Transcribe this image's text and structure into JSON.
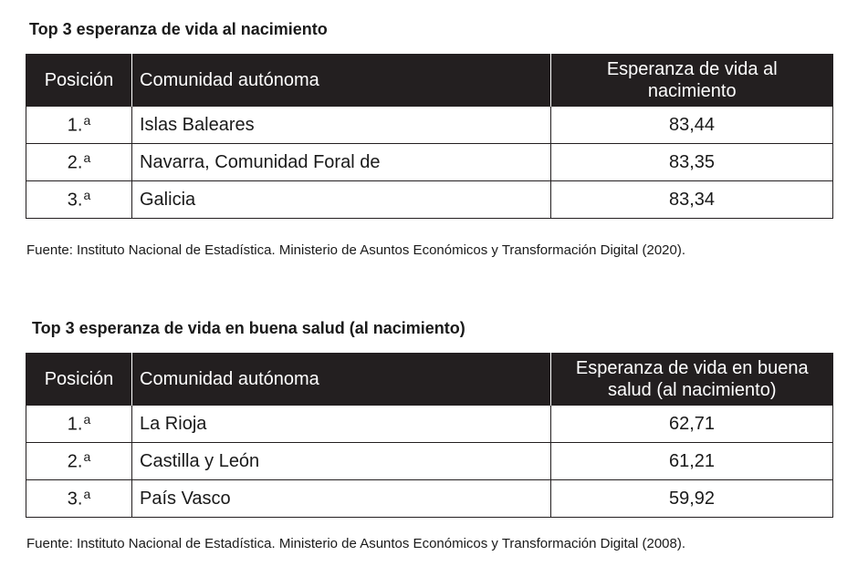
{
  "table1": {
    "title": "Top 3 esperanza de vida al nacimiento",
    "headers": {
      "position": "Posición",
      "region": "Comunidad autónoma",
      "value_line1": "Esperanza de vida al",
      "value_line2": "nacimiento"
    },
    "rows": [
      {
        "rank": "1.",
        "ord": "a",
        "region": "Islas Baleares",
        "value": "83,44"
      },
      {
        "rank": "2.",
        "ord": "a",
        "region": "Navarra, Comunidad Foral de",
        "value": "83,35"
      },
      {
        "rank": "3.",
        "ord": "a",
        "region": "Galicia",
        "value": "83,34"
      }
    ],
    "source": "Fuente: Instituto Nacional de Estadística. Ministerio de Asuntos Económicos y Transformación Digital (2020)."
  },
  "table2": {
    "title": "Top 3 esperanza de vida en buena salud (al nacimiento)",
    "headers": {
      "position": "Posición",
      "region": "Comunidad autónoma",
      "value_line1": "Esperanza de vida en buena",
      "value_line2": "salud (al nacimiento)"
    },
    "rows": [
      {
        "rank": "1.",
        "ord": "a",
        "region": "La Rioja",
        "value": "62,71"
      },
      {
        "rank": "2.",
        "ord": "a",
        "region": "Castilla y León",
        "value": "61,21"
      },
      {
        "rank": "3.",
        "ord": "a",
        "region": "País Vasco",
        "value": "59,92"
      }
    ],
    "source": "Fuente: Instituto Nacional de Estadística. Ministerio de Asuntos Económicos y Transformación Digital (2008)."
  }
}
